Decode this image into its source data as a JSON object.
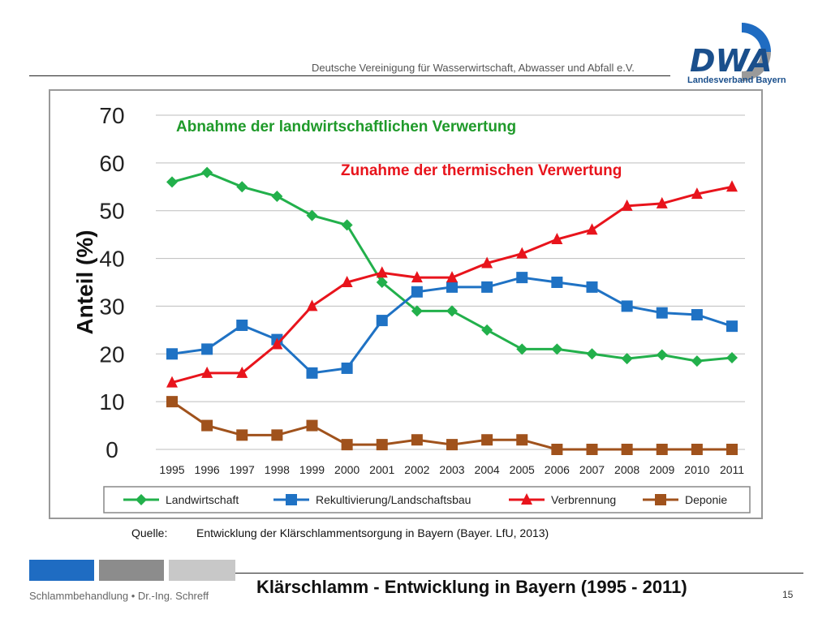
{
  "header": {
    "org_text": "Deutsche Vereinigung für Wasserwirtschaft, Abwasser und Abfall e.V."
  },
  "logo": {
    "brand": "DWA",
    "subtitle": "Landesverband Bayern",
    "icon": "dwa-logo"
  },
  "source": {
    "label": "Quelle:",
    "text": "Entwicklung der Klärschlammentsorgung in Bayern  (Bayer. LfU,  2013)"
  },
  "footer": {
    "left_text": "Schlammbehandlung •  Dr.-Ing. Schreff",
    "title": "Klärschlamm - Entwicklung in Bayern (1995 - 2011)",
    "page": "15"
  },
  "chart_data": {
    "type": "line",
    "ylabel": "Anteil (%)",
    "ylim": [
      0,
      70
    ],
    "yticks": [
      "0",
      "10",
      "20",
      "30",
      "40",
      "50",
      "60",
      "70"
    ],
    "grid": true,
    "legend_position": "bottom",
    "annotations": [
      {
        "text": "Abnahme der landwirtschaftlichen Verwertung",
        "color": "#1f9a2a"
      },
      {
        "text": "Zunahme der thermischen Verwertung",
        "color": "#e8141c"
      }
    ],
    "x": [
      "1995",
      "1996",
      "1997",
      "1998",
      "1999",
      "2000",
      "2001",
      "2002",
      "2003",
      "2004",
      "2005",
      "2006",
      "2007",
      "2008",
      "2009",
      "2010",
      "2011"
    ],
    "series": [
      {
        "name": "Landwirtschaft",
        "color": "#22b04b",
        "marker": "diamond",
        "values": [
          56,
          58,
          55,
          53,
          49,
          47,
          35,
          29,
          29,
          25,
          21,
          21,
          20,
          19,
          19.8,
          18.5,
          19.2
        ]
      },
      {
        "name": "Rekultivierung/Landschaftsbau",
        "color": "#1f72c4",
        "marker": "square",
        "values": [
          20,
          21,
          26,
          23,
          16,
          17,
          27,
          33,
          34,
          34,
          36,
          35,
          34,
          30,
          28.6,
          28.2,
          25.8
        ]
      },
      {
        "name": "Verbrennung",
        "color": "#e8141c",
        "marker": "triangle",
        "values": [
          14,
          16,
          16,
          22,
          30,
          35,
          37,
          36,
          36,
          39,
          41,
          44,
          46,
          51,
          51.5,
          53.5,
          55
        ]
      },
      {
        "name": "Deponie",
        "color": "#a0521c",
        "marker": "square",
        "values": [
          10,
          5,
          3,
          3,
          5,
          1,
          1,
          2,
          1,
          2,
          2,
          0,
          0,
          0,
          0,
          0,
          0
        ]
      }
    ]
  }
}
